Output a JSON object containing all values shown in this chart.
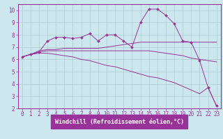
{
  "background_color": "#cce8ee",
  "grid_color": "#aacccc",
  "line_color": "#993399",
  "xlim": [
    -0.5,
    23.5
  ],
  "ylim": [
    2,
    10.5
  ],
  "xticks": [
    0,
    1,
    2,
    3,
    4,
    5,
    6,
    7,
    8,
    9,
    10,
    11,
    12,
    13,
    14,
    15,
    16,
    17,
    18,
    19,
    20,
    21,
    22,
    23
  ],
  "yticks": [
    2,
    3,
    4,
    5,
    6,
    7,
    8,
    9,
    10
  ],
  "xlabel": "Windchill (Refroidissement éolien,°C)",
  "series": [
    {
      "x": [
        0,
        1,
        2,
        3,
        4,
        5,
        6,
        7,
        8,
        9,
        10,
        11,
        12,
        13,
        14,
        15,
        16,
        17,
        18,
        19,
        20,
        21,
        22,
        23
      ],
      "y": [
        6.2,
        6.4,
        6.6,
        7.5,
        7.8,
        7.8,
        7.7,
        7.8,
        8.1,
        7.5,
        8.0,
        8.0,
        7.5,
        7.0,
        9.0,
        10.1,
        10.1,
        9.6,
        8.9,
        7.5,
        7.4,
        5.9,
        3.7,
        2.2
      ],
      "marker": true
    },
    {
      "x": [
        0,
        1,
        2,
        3,
        4,
        5,
        6,
        7,
        8,
        9,
        10,
        11,
        12,
        13,
        14,
        15,
        16,
        17,
        18,
        19,
        20,
        21,
        22,
        23
      ],
      "y": [
        6.2,
        6.4,
        6.7,
        6.8,
        6.8,
        6.9,
        6.9,
        6.9,
        6.9,
        6.9,
        7.0,
        7.1,
        7.2,
        7.3,
        7.4,
        7.4,
        7.4,
        7.4,
        7.4,
        7.4,
        7.4,
        7.4,
        7.4,
        7.4
      ],
      "marker": false
    },
    {
      "x": [
        0,
        1,
        2,
        3,
        4,
        5,
        6,
        7,
        8,
        9,
        10,
        11,
        12,
        13,
        14,
        15,
        16,
        17,
        18,
        19,
        20,
        21,
        22,
        23
      ],
      "y": [
        6.2,
        6.4,
        6.6,
        6.7,
        6.7,
        6.7,
        6.7,
        6.7,
        6.7,
        6.7,
        6.7,
        6.7,
        6.7,
        6.7,
        6.7,
        6.7,
        6.6,
        6.5,
        6.4,
        6.3,
        6.1,
        6.0,
        5.9,
        5.8
      ],
      "marker": false
    },
    {
      "x": [
        0,
        1,
        2,
        3,
        4,
        5,
        6,
        7,
        8,
        9,
        10,
        11,
        12,
        13,
        14,
        15,
        16,
        17,
        18,
        19,
        20,
        21,
        22,
        23
      ],
      "y": [
        6.2,
        6.4,
        6.5,
        6.5,
        6.4,
        6.3,
        6.2,
        6.0,
        5.9,
        5.7,
        5.5,
        5.4,
        5.2,
        5.0,
        4.8,
        4.6,
        4.5,
        4.3,
        4.1,
        3.8,
        3.5,
        3.2,
        3.7,
        2.2
      ],
      "marker": false
    }
  ],
  "tick_fontsize": 5.5,
  "label_fontsize": 6,
  "tick_color": "#993399",
  "label_color": "#993399",
  "axis_bg": "#993399"
}
